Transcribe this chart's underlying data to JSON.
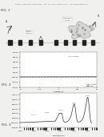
{
  "header_text": "Patent Application Publication   Oct. 10, 2013  Sheet 3 of 9   US 2013/0068642 A1",
  "fig1_label": "FIG. 1",
  "fig2_label": "FIG. 2",
  "fig3_label": "FIG. 3",
  "bg_color": "#f0f0ee",
  "plot_bg": "#ffffff",
  "fig2_xlabel": "Voltage (V)",
  "fig2_ylabel": "Current (A)",
  "fig2_yticks": [
    "1.0E-04",
    "8.0E-05",
    "6.0E-05",
    "4.0E-05",
    "2.0E-05",
    "0.0E+00",
    "-2.0E-05",
    "-4.0E-05"
  ],
  "fig2_xticks": [
    "-0.5",
    "-0.25",
    "0",
    "0.25",
    "0.5"
  ],
  "fig2_legend": [
    "without DNA",
    "with DNA"
  ],
  "fig3_ylabel": "Intensity (a.u.)",
  "fig3_yticks": [
    "1.20E-04",
    "1.00E-04",
    "8.00E-05",
    "6.00E-05",
    "4.00E-05",
    "2.00E-05",
    "0.00E+00",
    "-2.00E-05"
  ],
  "fig3_xticks": [
    "1.0E-14",
    "1.0E-12",
    "1.0E-10"
  ],
  "sq_positions": [
    0.9,
    1.9,
    2.9,
    3.9,
    5.4,
    6.3,
    7.2,
    8.1,
    9.0
  ],
  "line_color": "#555555",
  "dark_color": "#222222"
}
